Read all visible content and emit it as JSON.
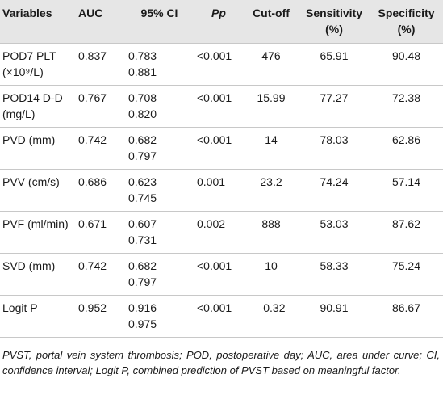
{
  "table": {
    "header": [
      "Variables",
      "AUC",
      "95% CI",
      "Pp",
      "Cut-off",
      "Sensitivity (%)",
      "Specificity (%)"
    ],
    "rows": [
      [
        "POD7 PLT (×10⁹/L)",
        "0.837",
        "0.783–0.881",
        "<0.001",
        "476",
        "65.91",
        "90.48"
      ],
      [
        "POD14 D-D (mg/L)",
        "0.767",
        "0.708–0.820",
        "<0.001",
        "15.99",
        "77.27",
        "72.38"
      ],
      [
        "PVD (mm)",
        "0.742",
        "0.682–0.797",
        "<0.001",
        "14",
        "78.03",
        "62.86"
      ],
      [
        "PVV (cm/s)",
        "0.686",
        "0.623–0.745",
        "0.001",
        "23.2",
        "74.24",
        "57.14"
      ],
      [
        "PVF (ml/min)",
        "0.671",
        "0.607–0.731",
        "0.002",
        "888",
        "53.03",
        "87.62"
      ],
      [
        "SVD (mm)",
        "0.742",
        "0.682–0.797",
        "<0.001",
        "10",
        "58.33",
        "75.24"
      ],
      [
        "Logit P",
        "0.952",
        "0.916–0.975",
        "<0.001",
        "–0.32",
        "90.91",
        "86.67"
      ]
    ]
  },
  "footnote": "PVST, portal vein system thrombosis; POD, postoperative day; AUC, area under curve; CI, confidence interval; Logit P, combined prediction of PVST based on meaningful factor."
}
